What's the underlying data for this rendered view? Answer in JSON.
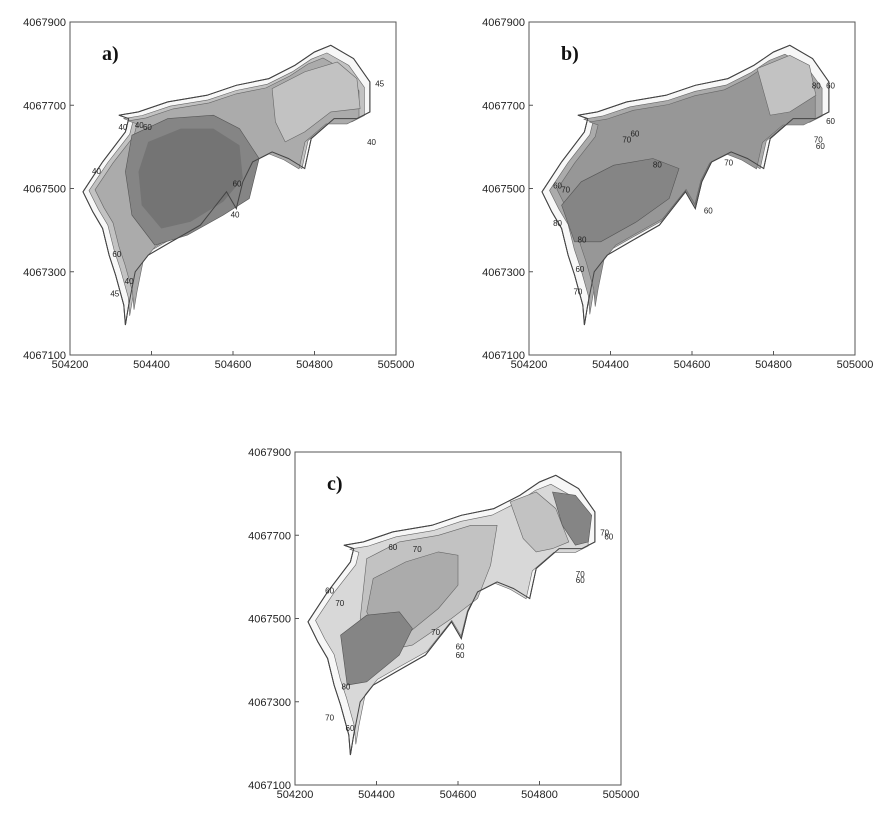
{
  "chart_data": [
    {
      "type": "contour",
      "panel_label": "a)",
      "x_ticks": [
        "504200",
        "504400",
        "504600",
        "504800",
        "505000"
      ],
      "y_ticks": [
        "4067900",
        "4067700",
        "4067500",
        "4067300",
        "4067100"
      ],
      "xlim": [
        504200,
        505000
      ],
      "ylim": [
        4067100,
        4067900
      ],
      "contour_labels": [
        {
          "text": "40",
          "x": 504330,
          "y": 4067640
        },
        {
          "text": "40",
          "x": 504370,
          "y": 4067645
        },
        {
          "text": "60",
          "x": 504390,
          "y": 4067640
        },
        {
          "text": "40",
          "x": 504265,
          "y": 4067535
        },
        {
          "text": "60",
          "x": 504610,
          "y": 4067505
        },
        {
          "text": "40",
          "x": 504605,
          "y": 4067430
        },
        {
          "text": "60",
          "x": 504315,
          "y": 4067335
        },
        {
          "text": "40",
          "x": 504345,
          "y": 4067270
        },
        {
          "text": "45",
          "x": 504310,
          "y": 4067240
        },
        {
          "text": "40",
          "x": 504940,
          "y": 4067605
        },
        {
          "text": "45",
          "x": 504960,
          "y": 4067745
        }
      ]
    },
    {
      "type": "contour",
      "panel_label": "b)",
      "x_ticks": [
        "504200",
        "504400",
        "504600",
        "504800",
        "505000"
      ],
      "y_ticks": [
        "4067900",
        "4067700",
        "4067500",
        "4067300",
        "4067100"
      ],
      "xlim": [
        504200,
        505000
      ],
      "ylim": [
        4067100,
        4067900
      ],
      "contour_labels": [
        {
          "text": "60",
          "x": 504460,
          "y": 4067625
        },
        {
          "text": "70",
          "x": 504440,
          "y": 4067610
        },
        {
          "text": "80",
          "x": 504515,
          "y": 4067550
        },
        {
          "text": "70",
          "x": 504690,
          "y": 4067555
        },
        {
          "text": "60",
          "x": 504270,
          "y": 4067500
        },
        {
          "text": "70",
          "x": 504290,
          "y": 4067490
        },
        {
          "text": "80",
          "x": 504330,
          "y": 4067370
        },
        {
          "text": "80",
          "x": 504270,
          "y": 4067410
        },
        {
          "text": "60",
          "x": 504640,
          "y": 4067440
        },
        {
          "text": "60",
          "x": 504325,
          "y": 4067300
        },
        {
          "text": "70",
          "x": 504320,
          "y": 4067245
        },
        {
          "text": "80",
          "x": 504905,
          "y": 4067740
        },
        {
          "text": "60",
          "x": 504940,
          "y": 4067740
        },
        {
          "text": "60",
          "x": 504940,
          "y": 4067655
        },
        {
          "text": "70",
          "x": 504910,
          "y": 4067610
        },
        {
          "text": "60",
          "x": 504915,
          "y": 4067595
        }
      ]
    },
    {
      "type": "contour",
      "panel_label": "c)",
      "x_ticks": [
        "504200",
        "504400",
        "504600",
        "504800",
        "505000"
      ],
      "y_ticks": [
        "4067900",
        "4067700",
        "4067500",
        "4067300",
        "4067100"
      ],
      "xlim": [
        504200,
        505000
      ],
      "ylim": [
        4067100,
        4067900
      ],
      "contour_labels": [
        {
          "text": "60",
          "x": 504440,
          "y": 4067665
        },
        {
          "text": "70",
          "x": 504500,
          "y": 4067660
        },
        {
          "text": "60",
          "x": 504285,
          "y": 4067560
        },
        {
          "text": "70",
          "x": 504310,
          "y": 4067530
        },
        {
          "text": "70",
          "x": 504545,
          "y": 4067460
        },
        {
          "text": "60",
          "x": 504605,
          "y": 4067425
        },
        {
          "text": "60",
          "x": 504605,
          "y": 4067405
        },
        {
          "text": "80",
          "x": 504325,
          "y": 4067330
        },
        {
          "text": "70",
          "x": 504285,
          "y": 4067255
        },
        {
          "text": "60",
          "x": 504335,
          "y": 4067230
        },
        {
          "text": "70",
          "x": 504900,
          "y": 4067600
        },
        {
          "text": "60",
          "x": 504900,
          "y": 4067585
        },
        {
          "text": "70",
          "x": 504960,
          "y": 4067700
        },
        {
          "text": "60",
          "x": 504970,
          "y": 4067690
        }
      ]
    }
  ],
  "colors": {
    "frame": "#555555",
    "outline": "#444444",
    "text": "#222222",
    "shade_lightest": "#f7f7f7",
    "shade_light": "#d8d8d8",
    "shade_mid_light": "#c2c2c2",
    "shade_mid": "#ababab",
    "shade_mid_dark": "#979797",
    "shade_dark": "#858585",
    "shade_darkest": "#747474"
  }
}
